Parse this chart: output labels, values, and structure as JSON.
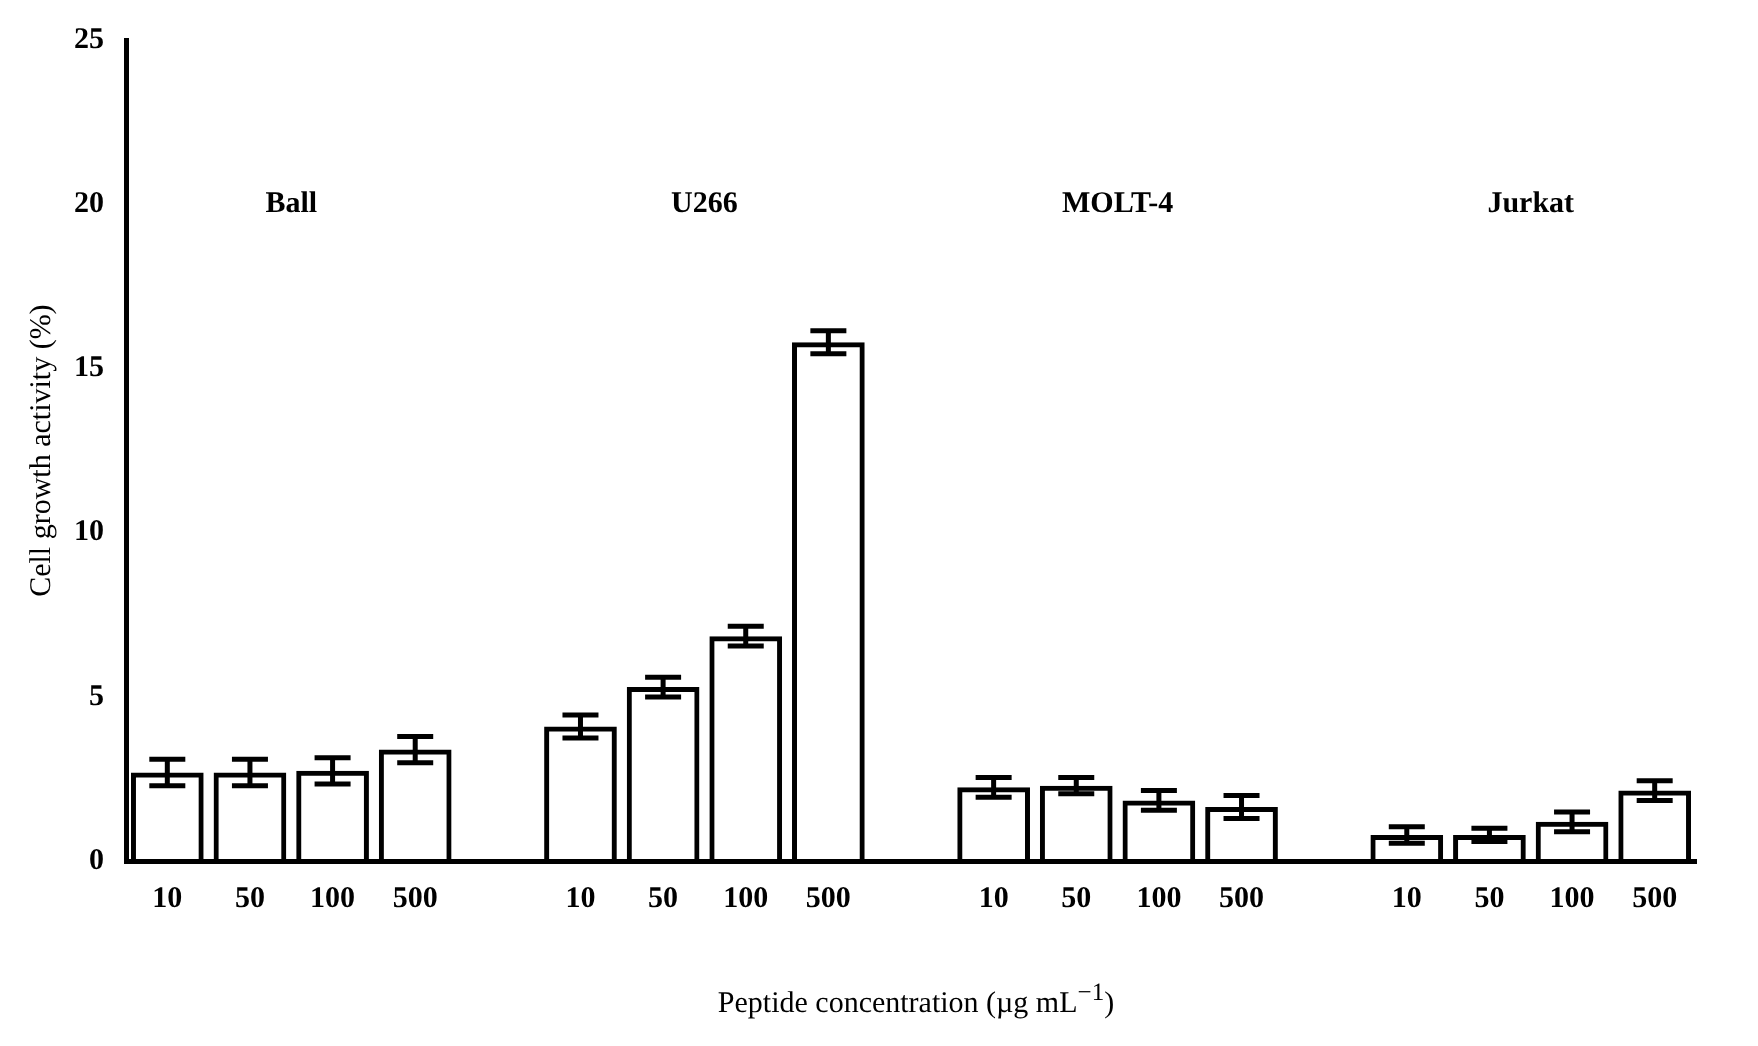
{
  "chart_data": {
    "type": "bar",
    "xlabel": "Peptide concentration (µg mL$^{−1}$)",
    "ylabel": "Cell growth activity (%)",
    "categories": [
      "10",
      "50",
      "100",
      "500",
      null,
      "10",
      "50",
      "100",
      "500",
      null,
      "10",
      "50",
      "100",
      "500",
      null,
      "10",
      "50",
      "100",
      "500"
    ],
    "values": [
      2.7,
      2.7,
      2.75,
      3.4,
      null,
      4.1,
      5.3,
      6.85,
      15.8,
      null,
      2.25,
      2.3,
      1.85,
      1.65,
      null,
      0.8,
      0.8,
      1.2,
      2.15
    ],
    "errors": [
      0.4,
      0.4,
      0.4,
      0.4,
      null,
      0.35,
      0.3,
      0.3,
      0.35,
      null,
      0.3,
      0.25,
      0.3,
      0.35,
      null,
      0.25,
      0.2,
      0.3,
      0.3
    ],
    "color": "#000000",
    "annotations": [
      "Ball",
      "U266",
      "MOLT-4",
      "Jurkat"
    ],
    "ylim": [
      0,
      25
    ],
    "yticks": [
      0,
      5,
      10,
      15,
      20,
      25
    ],
    "grid": false,
    "legend": false
  }
}
